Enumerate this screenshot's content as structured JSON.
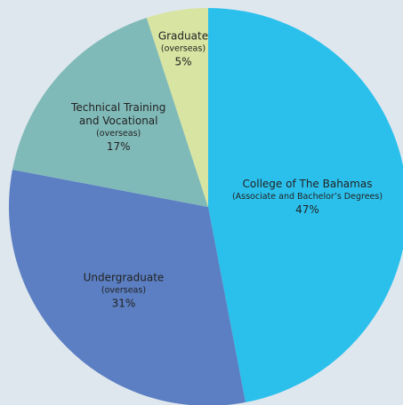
{
  "chart_data": {
    "type": "pie",
    "categories": [
      [
        "College of The Bahamas"
      ],
      [
        "Undergraduate"
      ],
      [
        "Technical Training",
        "and Vocational"
      ],
      [
        "Graduate"
      ]
    ],
    "sublabels": [
      "(Associate and Bachelor’s Degrees)",
      "(overseas)",
      "(overseas)",
      "(overseas)"
    ],
    "values": [
      47,
      31,
      17,
      5
    ],
    "value_labels": [
      "47%",
      "31%",
      "17%",
      "5%"
    ],
    "colors": [
      "#2bc0ec",
      "#5b7fc2",
      "#80bab8",
      "#d7e4a2"
    ]
  }
}
